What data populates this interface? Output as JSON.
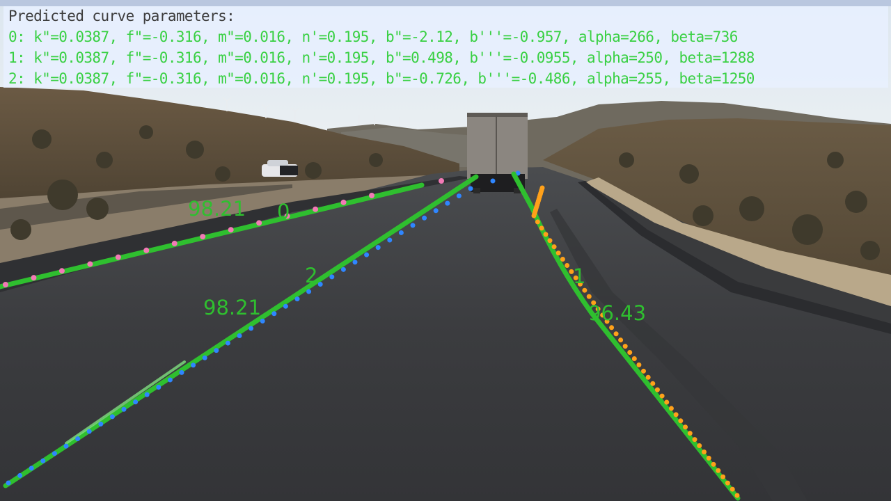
{
  "panel": {
    "title": "Predicted curve parameters:",
    "params": [
      "0: k\"=0.0387, f\"=-0.316, m\"=0.016, n'=0.195, b\"=-2.12, b'''=-0.957, alpha=266, beta=736",
      "1: k\"=0.0387, f\"=-0.316, m\"=0.016, n'=0.195, b\"=0.498, b'''=-0.0955, alpha=250, beta=1288",
      "2: k\"=0.0387, f\"=-0.316, m\"=0.016, n'=0.195, b\"=-0.726, b'''=-0.486, alpha=255, beta=1250"
    ]
  },
  "lanes": [
    {
      "id": "0",
      "score": "98.21",
      "dot_color": "#f27ab6"
    },
    {
      "id": "1",
      "score": "96.43",
      "dot_color": "#ffa11a"
    },
    {
      "id": "2",
      "score": "98.21",
      "dot_color": "#2f86ff"
    }
  ],
  "colors": {
    "fit_line": "#2fbf2f",
    "panel_bg": "#e8f0ff",
    "param_text": "#39d043"
  }
}
